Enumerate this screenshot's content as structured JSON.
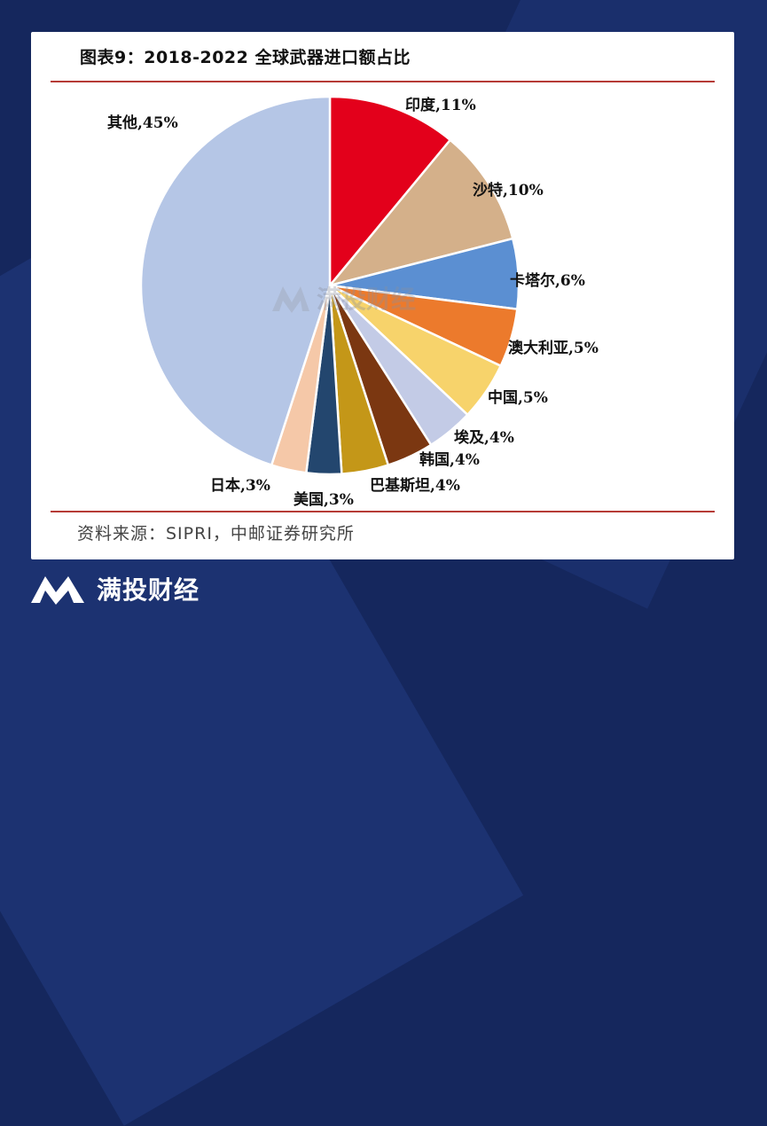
{
  "chart_data": {
    "type": "pie",
    "title": "图表9：2018-2022 全球武器进口额占比",
    "slices": [
      {
        "label": "印度,11%",
        "value": 11,
        "color": "#e3001b"
      },
      {
        "label": "沙特,10%",
        "value": 10,
        "color": "#d4b08a"
      },
      {
        "label": "卡塔尔,6%",
        "value": 6,
        "color": "#5b8fd2"
      },
      {
        "label": "澳大利亚,5%",
        "value": 5,
        "color": "#ec7a2c"
      },
      {
        "label": "中国,5%",
        "value": 5,
        "color": "#f7d36b"
      },
      {
        "label": "埃及,4%",
        "value": 4,
        "color": "#c3cbe6"
      },
      {
        "label": "韩国,4%",
        "value": 4,
        "color": "#7b3711"
      },
      {
        "label": "巴基斯坦,4%",
        "value": 4,
        "color": "#c49718"
      },
      {
        "label": "美国,3%",
        "value": 3,
        "color": "#23466e"
      },
      {
        "label": "日本,3%",
        "value": 3,
        "color": "#f5c8a8"
      },
      {
        "label": "其他,45%",
        "value": 45,
        "color": "#b5c6e6"
      }
    ]
  },
  "source": "资料来源：SIPRI，中邮证券研究所",
  "watermark": "满投财经",
  "brand": {
    "name": "满投财经"
  }
}
